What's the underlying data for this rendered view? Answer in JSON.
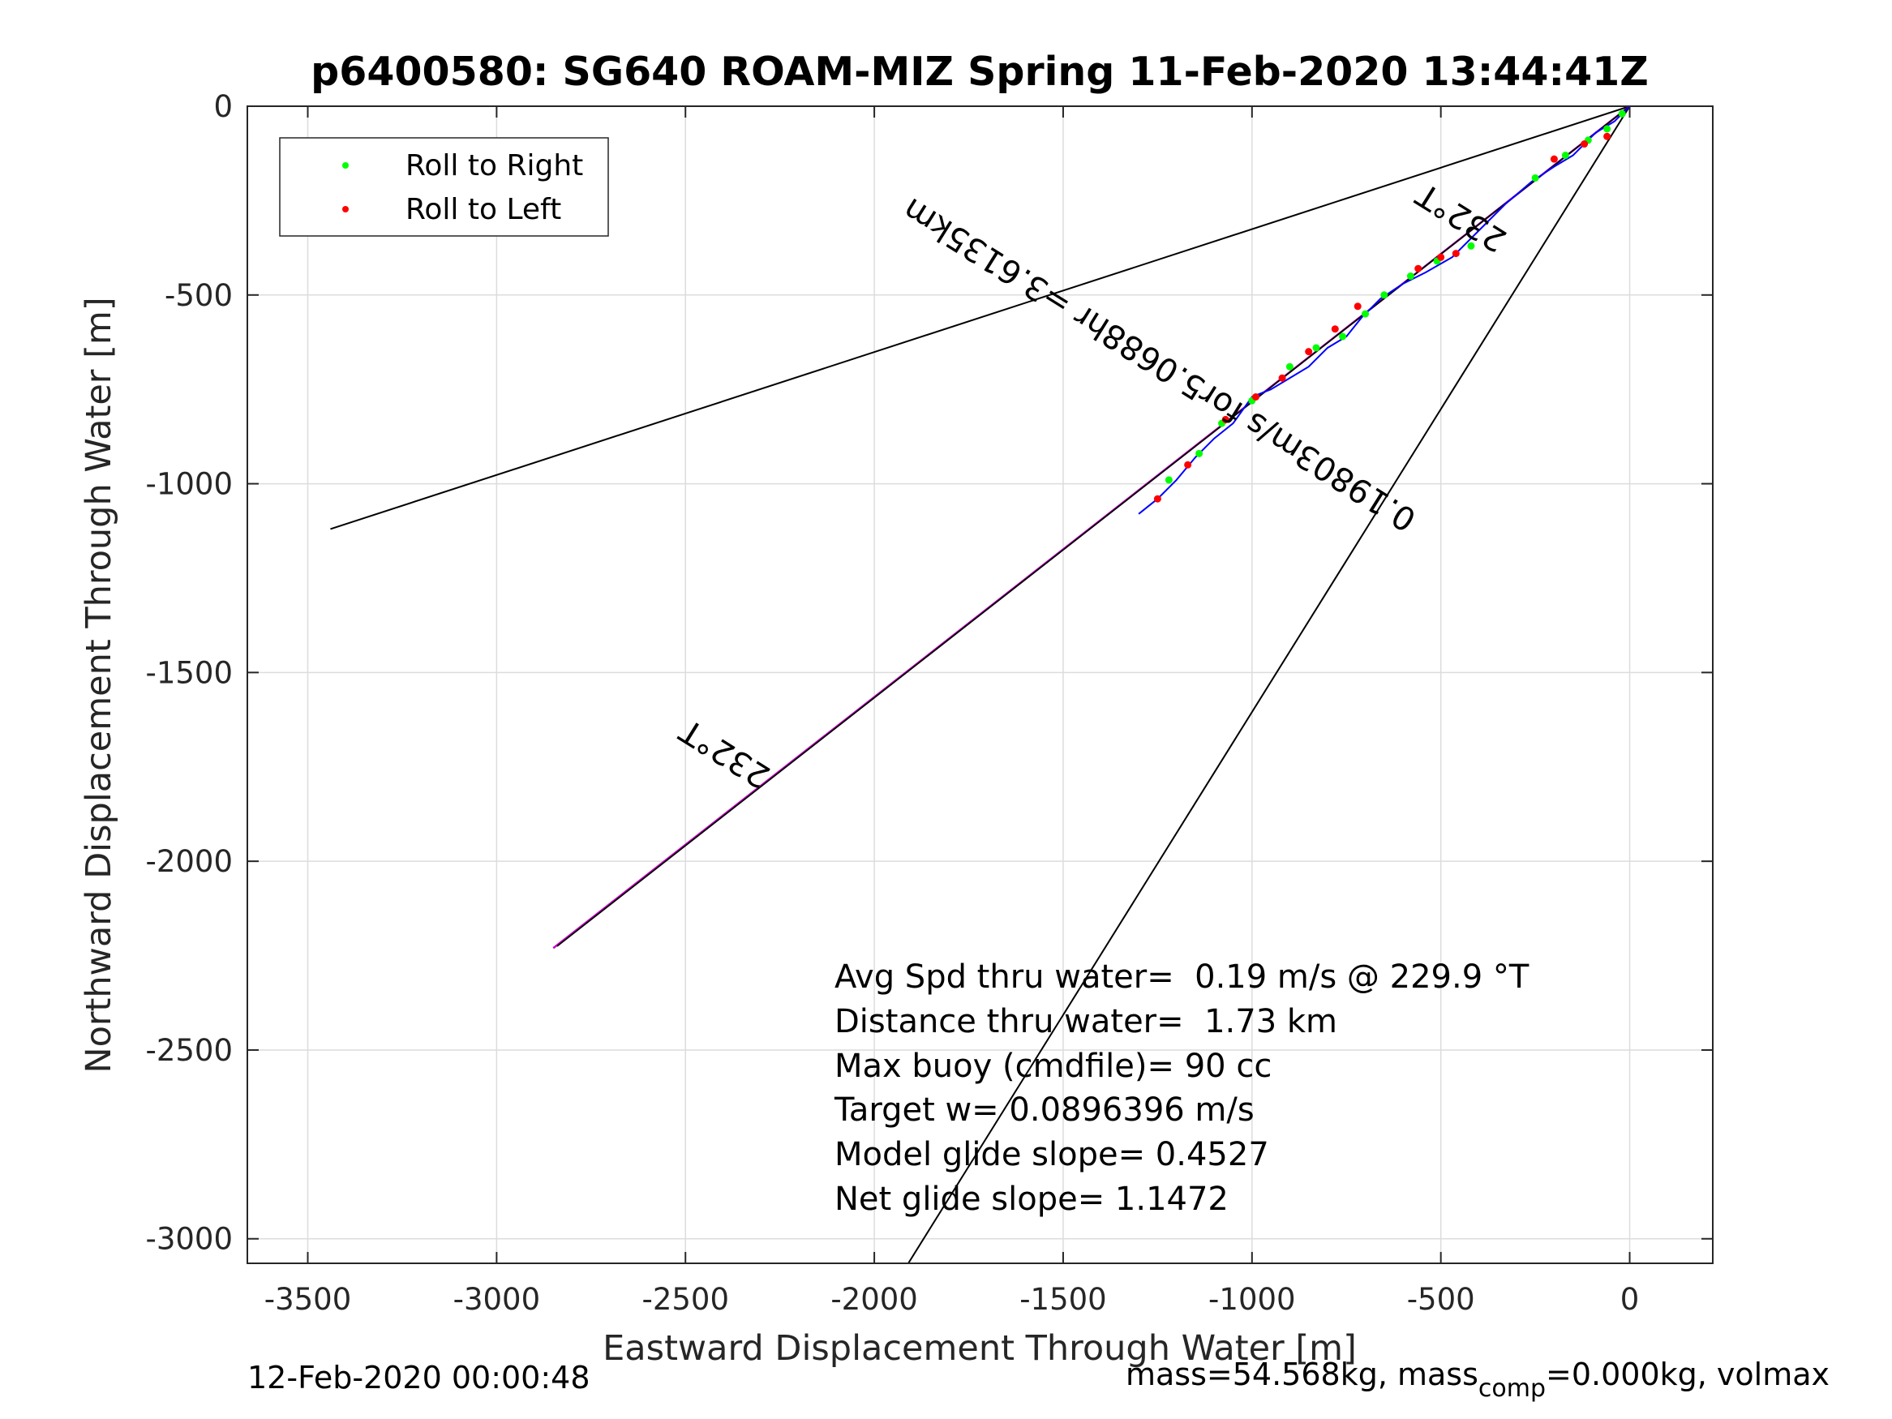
{
  "chart_data": {
    "type": "line",
    "title": "p6400580: SG640 ROAM-MIZ Spring 11-Feb-2020 13:44:41Z",
    "xlabel": "Eastward Displacement Through Water [m]",
    "ylabel": "Northward Displacement Through Water [m]",
    "xlim": [
      -3660,
      220
    ],
    "ylim": [
      -3065,
      0
    ],
    "xticks": [
      -3500,
      -3000,
      -2500,
      -2000,
      -1500,
      -1000,
      -500,
      0
    ],
    "yticks": [
      0,
      -500,
      -1000,
      -1500,
      -2000,
      -2500,
      -3000
    ],
    "grid": true,
    "legend": {
      "position": "top-left",
      "entries": [
        {
          "label": "Roll to Right",
          "color": "#00ff00"
        },
        {
          "label": "Roll to Left",
          "color": "#ff0000"
        }
      ]
    },
    "lines": {
      "upper_bound": {
        "color": "#000000",
        "x": [
          0,
          -3440
        ],
        "y": [
          0,
          -1120
        ]
      },
      "lower_bound": {
        "color": "#000000",
        "x": [
          0,
          -1910
        ],
        "y": [
          0,
          -3065
        ]
      },
      "heading_line": {
        "color": "#000000",
        "x": [
          0,
          -2840
        ],
        "y": [
          0,
          -2225
        ]
      },
      "projected_track": {
        "color": "#cc00cc",
        "x": [
          0,
          -2850
        ],
        "y": [
          0,
          -2230
        ]
      }
    },
    "track": {
      "color": "#0000ff",
      "x": [
        0,
        -40,
        -90,
        -150,
        -200,
        -260,
        -330,
        -400,
        -470,
        -540,
        -600,
        -660,
        -710,
        -750,
        -800,
        -850,
        -900,
        -950,
        -1000,
        -1050,
        -1100,
        -1150,
        -1200,
        -1250,
        -1300
      ],
      "y": [
        0,
        -40,
        -70,
        -130,
        -160,
        -200,
        -260,
        -330,
        -400,
        -440,
        -470,
        -510,
        -560,
        -610,
        -640,
        -690,
        -720,
        -750,
        -770,
        -840,
        -880,
        -930,
        -990,
        -1040,
        -1080
      ]
    },
    "roll_right_points": {
      "x": [
        -20,
        -60,
        -110,
        -170,
        -250,
        -420,
        -510,
        -580,
        -650,
        -700,
        -760,
        -830,
        -900,
        -1000,
        -1080,
        -1140,
        -1220
      ],
      "y": [
        -20,
        -60,
        -90,
        -130,
        -190,
        -370,
        -410,
        -450,
        -500,
        -550,
        -610,
        -640,
        -690,
        -780,
        -840,
        -920,
        -990
      ],
      "color": "#00ff00"
    },
    "roll_left_points": {
      "x": [
        -60,
        -120,
        -200,
        -460,
        -500,
        -560,
        -720,
        -780,
        -850,
        -920,
        -990,
        -1070,
        -1170,
        -1250
      ],
      "y": [
        -80,
        -100,
        -140,
        -390,
        -400,
        -430,
        -530,
        -590,
        -650,
        -720,
        -770,
        -830,
        -950,
        -1040
      ],
      "color": "#ff0000"
    },
    "annotations": [
      {
        "text": "232°T",
        "x": -430,
        "y": -270,
        "rotation": 212
      },
      {
        "text": "0.19803m/s for5.0688hr =3.6135km",
        "x": -1230,
        "y": -660,
        "rotation": 212
      },
      {
        "text": "232°T",
        "x": -2380,
        "y": -1690,
        "rotation": 212
      }
    ],
    "stats": [
      "Avg Spd thru water=  0.19 m/s @ 229.9 °T",
      "Distance thru water=  1.73 km",
      "Max buoy (cmdfile)= 90 cc",
      "Target w= 0.0896396 m/s",
      "Model glide slope= 0.4527",
      "Net glide slope= 1.1472"
    ]
  },
  "footer": {
    "timestamp": "12-Feb-2020 00:00:48",
    "mass_prefix": "mass=54.568kg, mass",
    "mass_sub": "comp",
    "mass_suffix": "=0.000kg, volmax"
  }
}
